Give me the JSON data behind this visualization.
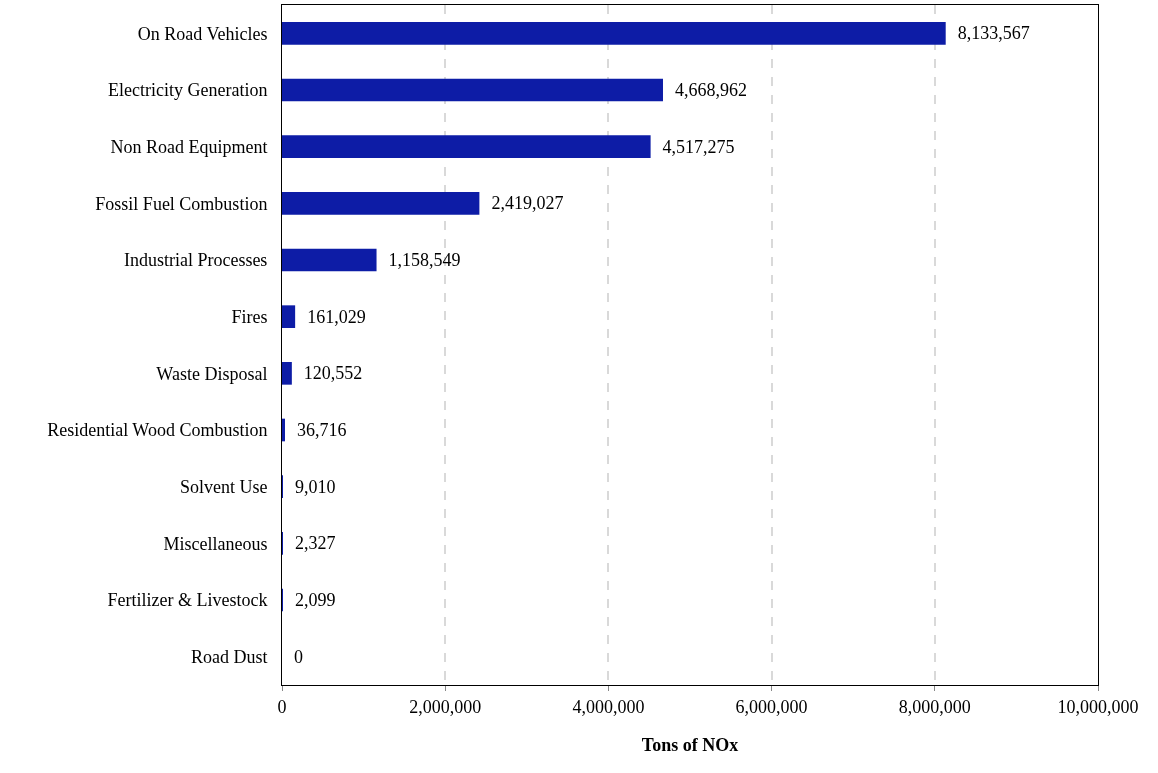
{
  "chart_data": {
    "type": "bar",
    "orientation": "horizontal",
    "xlabel": "Tons of NOx",
    "categories": [
      "On Road Vehicles",
      "Electricity Generation",
      "Non Road Equipment",
      "Fossil Fuel Combustion",
      "Industrial Processes",
      "Fires",
      "Waste Disposal",
      "Residential Wood Combustion",
      "Solvent Use",
      "Miscellaneous",
      "Fertilizer & Livestock",
      "Road Dust"
    ],
    "values": [
      8133567,
      4668962,
      4517275,
      2419027,
      1158549,
      161029,
      120552,
      36716,
      9010,
      2327,
      2099,
      0
    ],
    "value_labels": [
      "8,133,567",
      "4,668,962",
      "4,517,275",
      "2,419,027",
      "1,158,549",
      "161,029",
      "120,552",
      "36,716",
      "9,010",
      "2,327",
      "2,099",
      "0"
    ],
    "color": "#0d1ca6",
    "xlim": [
      0,
      10000000
    ],
    "xticks": [
      0,
      {
        "value": 2000000,
        "label": "2,000,000"
      },
      {
        "value": 4000000,
        "label": "4,000,000"
      },
      {
        "value": 6000000,
        "label": "6,000,000"
      },
      {
        "value": 8000000,
        "label": "8,000,000"
      },
      {
        "value": 10000000,
        "label": "10,000,000"
      }
    ],
    "grid": "x"
  }
}
